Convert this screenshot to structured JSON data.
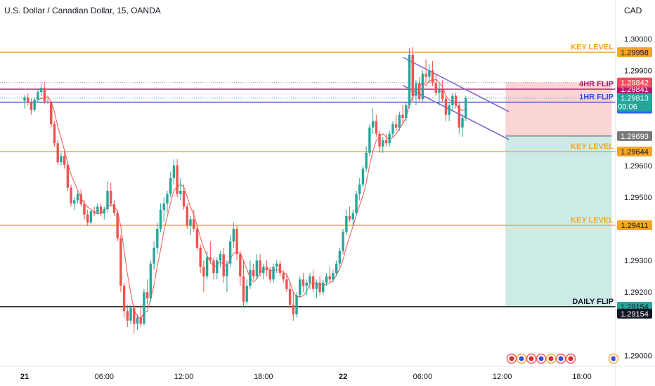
{
  "header": {
    "symbol_title": "U.S. Dollar / Canadian Dollar, 15, OANDA",
    "currency": "CAD"
  },
  "chart_data": {
    "type": "candlestick",
    "interval": "15",
    "ylim": [
      1.2897,
      1.30065
    ],
    "y_ticks": [
      "1.30000",
      "1.29900",
      "1.29600",
      "1.29500",
      "1.29300",
      "1.29200",
      "1.29000"
    ],
    "x_ticks": [
      {
        "label": "21",
        "bar": 0,
        "bold": true
      },
      {
        "label": "06:00",
        "bar": 24
      },
      {
        "label": "12:00",
        "bar": 48
      },
      {
        "label": "18:00",
        "bar": 72
      },
      {
        "label": "22",
        "bar": 96,
        "bold": true
      },
      {
        "label": "06:00",
        "bar": 120
      },
      {
        "label": "12:00",
        "bar": 144
      },
      {
        "label": "18:00",
        "bar": 168
      }
    ],
    "grid": false,
    "colors": {
      "up": "#26a69a",
      "down": "#ef5350",
      "ma": "#ef5350",
      "key_level": "#f5a623",
      "four_hr": "#b2186b",
      "one_hr": "#3b4bd8",
      "daily": "#000000",
      "channel": "#7b61d6",
      "stop_zone": "#fbd5d4",
      "target_zone": "#cdebe6"
    },
    "levels": [
      {
        "label": "KEY LEVEL",
        "price": 1.29958,
        "tag": "1.29958",
        "kind": "key_level"
      },
      {
        "label": "4HR FLIP",
        "price": 1.29841,
        "tag": "1.29841",
        "kind": "four_hr"
      },
      {
        "label": "1HR FLIP",
        "price": 1.298,
        "tag": "1.29800",
        "kind": "one_hr"
      },
      {
        "label": "KEY LEVEL",
        "price": 1.29644,
        "tag": "1.29644",
        "kind": "key_level"
      },
      {
        "label": "KEY LEVEL",
        "price": 1.29411,
        "tag": "1.29411",
        "kind": "key_level"
      },
      {
        "label": "DAILY FLIP",
        "price": 1.29154,
        "tag": "1.29154",
        "kind": "daily"
      }
    ],
    "price_tags": [
      {
        "text": "1.29842",
        "price": 1.29862,
        "bg": "#f44e5e",
        "fg": "#ffffff"
      },
      {
        "text": "1.29813",
        "price": 1.29813,
        "bg": "#26a69a",
        "fg": "#ffffff",
        "countdown": "00:06"
      },
      {
        "text": "1.29693",
        "price": 1.29693,
        "bg": "#7a7a7a",
        "fg": "#ffffff"
      },
      {
        "text": "1.29154",
        "price": 1.29132,
        "bg": "#131722",
        "fg": "#ffffff"
      }
    ],
    "position": {
      "entry": 1.29693,
      "stop": 1.29862,
      "target": 1.29154,
      "start_bar": 145,
      "end_bar": 177
    },
    "channel": {
      "upper": [
        [
          114,
          1.29942
        ],
        [
          146,
          1.2977
        ]
      ],
      "lower": [
        [
          114,
          1.29853
        ],
        [
          146,
          1.29682
        ]
      ]
    },
    "ma_period": 5,
    "candles": [
      [
        1.29805,
        1.29822,
        1.2978,
        1.29815
      ],
      [
        1.29815,
        1.29828,
        1.2979,
        1.298
      ],
      [
        1.298,
        1.29812,
        1.2976,
        1.29775
      ],
      [
        1.29775,
        1.29815,
        1.2977,
        1.29808
      ],
      [
        1.29808,
        1.2984,
        1.298,
        1.29832
      ],
      [
        1.29832,
        1.29858,
        1.2982,
        1.29845
      ],
      [
        1.29845,
        1.2986,
        1.29795,
        1.29802
      ],
      [
        1.29802,
        1.29812,
        1.29795,
        1.298
      ],
      [
        1.298,
        1.29805,
        1.2972,
        1.2973
      ],
      [
        1.2973,
        1.2974,
        1.2966,
        1.2967
      ],
      [
        1.2967,
        1.2968,
        1.296,
        1.2961
      ],
      [
        1.2961,
        1.2964,
        1.296,
        1.2963
      ],
      [
        1.2963,
        1.2965,
        1.2959,
        1.29602
      ],
      [
        1.29602,
        1.29608,
        1.2952,
        1.2953
      ],
      [
        1.2953,
        1.2954,
        1.2947,
        1.2948
      ],
      [
        1.2948,
        1.295,
        1.2946,
        1.2949
      ],
      [
        1.2949,
        1.2952,
        1.2948,
        1.2951
      ],
      [
        1.2951,
        1.29525,
        1.2947,
        1.29478
      ],
      [
        1.29478,
        1.2949,
        1.2943,
        1.29445
      ],
      [
        1.29445,
        1.2946,
        1.2941,
        1.2942
      ],
      [
        1.2942,
        1.2946,
        1.29415,
        1.29455
      ],
      [
        1.29455,
        1.2947,
        1.2944,
        1.2945
      ],
      [
        1.2945,
        1.2948,
        1.29445,
        1.2947
      ],
      [
        1.2947,
        1.2948,
        1.2944,
        1.29448
      ],
      [
        1.29448,
        1.2947,
        1.2943,
        1.29462
      ],
      [
        1.29462,
        1.2955,
        1.2945,
        1.2952
      ],
      [
        1.2952,
        1.29545,
        1.2947,
        1.29478
      ],
      [
        1.29478,
        1.2949,
        1.2944,
        1.2945
      ],
      [
        1.2945,
        1.2946,
        1.2936,
        1.2937
      ],
      [
        1.2937,
        1.2938,
        1.292,
        1.2922
      ],
      [
        1.2922,
        1.2923,
        1.2912,
        1.2914
      ],
      [
        1.2914,
        1.2916,
        1.2909,
        1.2911
      ],
      [
        1.2911,
        1.2916,
        1.291,
        1.2915
      ],
      [
        1.2915,
        1.2916,
        1.2907,
        1.291
      ],
      [
        1.291,
        1.2913,
        1.2908,
        1.2912
      ],
      [
        1.2912,
        1.2916,
        1.2909,
        1.291
      ],
      [
        1.291,
        1.2921,
        1.29095,
        1.292
      ],
      [
        1.292,
        1.2924,
        1.2916,
        1.2918
      ],
      [
        1.2918,
        1.293,
        1.2917,
        1.2929
      ],
      [
        1.2929,
        1.2936,
        1.2927,
        1.2934
      ],
      [
        1.2934,
        1.2942,
        1.2932,
        1.294
      ],
      [
        1.294,
        1.2948,
        1.2939,
        1.2946
      ],
      [
        1.2946,
        1.295,
        1.2942,
        1.2948
      ],
      [
        1.2948,
        1.2952,
        1.2945,
        1.2951
      ],
      [
        1.2951,
        1.2958,
        1.295,
        1.2956
      ],
      [
        1.2956,
        1.2962,
        1.2954,
        1.296
      ],
      [
        1.296,
        1.2962,
        1.295,
        1.2951
      ],
      [
        1.2951,
        1.2956,
        1.2949,
        1.2952
      ],
      [
        1.2952,
        1.2954,
        1.2946,
        1.2947
      ],
      [
        1.2947,
        1.2948,
        1.294,
        1.2941
      ],
      [
        1.2941,
        1.2944,
        1.2938,
        1.2943
      ],
      [
        1.2943,
        1.2946,
        1.2939,
        1.294
      ],
      [
        1.294,
        1.2941,
        1.2933,
        1.2934
      ],
      [
        1.2934,
        1.2935,
        1.2926,
        1.2928
      ],
      [
        1.2928,
        1.293,
        1.292,
        1.2925
      ],
      [
        1.2925,
        1.2933,
        1.2924,
        1.2931
      ],
      [
        1.2931,
        1.2936,
        1.2929,
        1.293
      ],
      [
        1.293,
        1.2931,
        1.2924,
        1.2926
      ],
      [
        1.2926,
        1.2931,
        1.2924,
        1.293
      ],
      [
        1.293,
        1.2933,
        1.2928,
        1.2932
      ],
      [
        1.2932,
        1.2934,
        1.2923,
        1.2925
      ],
      [
        1.2925,
        1.293,
        1.292,
        1.2929
      ],
      [
        1.2929,
        1.2938,
        1.2928,
        1.2936
      ],
      [
        1.2936,
        1.2942,
        1.2934,
        1.294
      ],
      [
        1.294,
        1.2941,
        1.293,
        1.2932
      ],
      [
        1.2932,
        1.2933,
        1.2922,
        1.2925
      ],
      [
        1.2925,
        1.293,
        1.2915,
        1.2917
      ],
      [
        1.2917,
        1.2924,
        1.2916,
        1.2922
      ],
      [
        1.2922,
        1.293,
        1.2921,
        1.2927
      ],
      [
        1.2927,
        1.2929,
        1.2924,
        1.2925
      ],
      [
        1.2925,
        1.2932,
        1.2924,
        1.293
      ],
      [
        1.293,
        1.2932,
        1.2925,
        1.2926
      ],
      [
        1.2926,
        1.2929,
        1.2924,
        1.2928
      ],
      [
        1.2928,
        1.293,
        1.2925,
        1.2927
      ],
      [
        1.2927,
        1.2928,
        1.2923,
        1.2924
      ],
      [
        1.2924,
        1.2929,
        1.2923,
        1.2928
      ],
      [
        1.2928,
        1.293,
        1.2926,
        1.2929
      ],
      [
        1.2929,
        1.293,
        1.2925,
        1.2926
      ],
      [
        1.2926,
        1.2927,
        1.2923,
        1.2924
      ],
      [
        1.2924,
        1.2926,
        1.292,
        1.2921
      ],
      [
        1.2921,
        1.2923,
        1.2915,
        1.2916
      ],
      [
        1.2916,
        1.292,
        1.2911,
        1.2913
      ],
      [
        1.2913,
        1.292,
        1.2912,
        1.2919
      ],
      [
        1.2919,
        1.2925,
        1.2918,
        1.2924
      ],
      [
        1.2924,
        1.2926,
        1.292,
        1.2922
      ],
      [
        1.2922,
        1.2924,
        1.2919,
        1.2923
      ],
      [
        1.2923,
        1.2926,
        1.2921,
        1.2925
      ],
      [
        1.2925,
        1.2927,
        1.292,
        1.2921
      ],
      [
        1.2921,
        1.2924,
        1.2918,
        1.2923
      ],
      [
        1.2923,
        1.2925,
        1.2919,
        1.292
      ],
      [
        1.292,
        1.2924,
        1.2919,
        1.2923
      ],
      [
        1.2923,
        1.2926,
        1.2922,
        1.2925
      ],
      [
        1.2925,
        1.2928,
        1.2923,
        1.2924
      ],
      [
        1.2924,
        1.2927,
        1.2923,
        1.2926
      ],
      [
        1.2926,
        1.293,
        1.2925,
        1.2929
      ],
      [
        1.2929,
        1.2934,
        1.2928,
        1.2933
      ],
      [
        1.2933,
        1.294,
        1.2932,
        1.2939
      ],
      [
        1.2939,
        1.2946,
        1.2938,
        1.2944
      ],
      [
        1.2944,
        1.2947,
        1.2942,
        1.2943
      ],
      [
        1.2943,
        1.2946,
        1.2941,
        1.2945
      ],
      [
        1.2945,
        1.2952,
        1.2944,
        1.2951
      ],
      [
        1.2951,
        1.2956,
        1.2949,
        1.2954
      ],
      [
        1.2954,
        1.296,
        1.2953,
        1.2959
      ],
      [
        1.2959,
        1.2966,
        1.2958,
        1.2964
      ],
      [
        1.2964,
        1.2973,
        1.2963,
        1.2972
      ],
      [
        1.2972,
        1.2978,
        1.297,
        1.2974
      ],
      [
        1.2974,
        1.2976,
        1.2969,
        1.297
      ],
      [
        1.297,
        1.2971,
        1.2964,
        1.2966
      ],
      [
        1.2966,
        1.2969,
        1.2964,
        1.2968
      ],
      [
        1.2968,
        1.297,
        1.2966,
        1.2967
      ],
      [
        1.2967,
        1.2971,
        1.2966,
        1.297
      ],
      [
        1.297,
        1.2974,
        1.2969,
        1.2973
      ],
      [
        1.2973,
        1.2976,
        1.2971,
        1.2972
      ],
      [
        1.2972,
        1.2977,
        1.2971,
        1.2976
      ],
      [
        1.2976,
        1.2979,
        1.2973,
        1.2975
      ],
      [
        1.2975,
        1.298,
        1.2974,
        1.2979
      ],
      [
        1.2979,
        1.2997,
        1.2978,
        1.2995
      ],
      [
        1.2995,
        1.29975,
        1.298,
        1.2982
      ],
      [
        1.2982,
        1.2987,
        1.2979,
        1.2986
      ],
      [
        1.2986,
        1.2988,
        1.298,
        1.2981
      ],
      [
        1.2981,
        1.299,
        1.298,
        1.2989
      ],
      [
        1.2989,
        1.29935,
        1.2986,
        1.2988
      ],
      [
        1.2988,
        1.2992,
        1.2986,
        1.299
      ],
      [
        1.299,
        1.2993,
        1.2985,
        1.2986
      ],
      [
        1.2986,
        1.2989,
        1.2982,
        1.2983
      ],
      [
        1.2983,
        1.2986,
        1.2979,
        1.2984
      ],
      [
        1.2984,
        1.2987,
        1.298,
        1.2981
      ],
      [
        1.2981,
        1.2982,
        1.2974,
        1.2976
      ],
      [
        1.2976,
        1.298,
        1.2974,
        1.2979
      ],
      [
        1.2979,
        1.2983,
        1.2977,
        1.2982
      ],
      [
        1.2982,
        1.2983,
        1.2978,
        1.2979
      ],
      [
        1.2979,
        1.298,
        1.297,
        1.2972
      ],
      [
        1.2972,
        1.2976,
        1.2969,
        1.2975
      ],
      [
        1.2975,
        1.2982,
        1.2974,
        1.29813
      ]
    ],
    "ma_values": [],
    "flag_count": 8
  }
}
